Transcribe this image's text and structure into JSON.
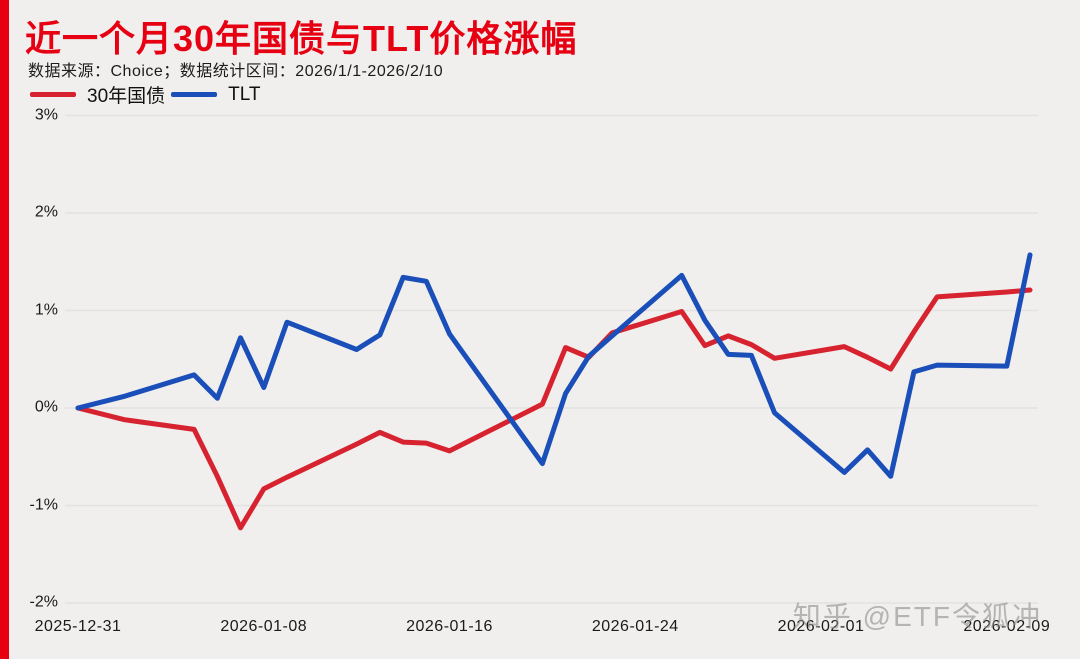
{
  "page": {
    "background_color": "#f0efed",
    "accent_bar_color": "#e60012"
  },
  "header": {
    "title": "近一个月30年国债与TLT价格涨幅",
    "title_color": "#e60012",
    "subtitle": "数据来源：Choice；数据统计区间：2026/1/1-2026/2/10"
  },
  "legend": {
    "items": [
      {
        "label": "30年国债",
        "color": "#d6232f"
      },
      {
        "label": "TLT",
        "color": "#1a4eb8"
      }
    ]
  },
  "watermark": {
    "text": "知乎 @ETF令狐冲"
  },
  "chart_data": {
    "type": "line",
    "title": "近一个月30年国债与TLT价格涨幅",
    "xlabel": "",
    "ylabel": "",
    "ylim": [
      -2,
      3
    ],
    "x_start_date": "2025-12-31",
    "x_end_date": "2026-02-10",
    "grid": true,
    "grid_color": "#e3e2e0",
    "axis_label_color": "#1a1a1a",
    "legend_position": "top-left",
    "yticks": [
      {
        "label": "3%",
        "value": 3
      },
      {
        "label": "2%",
        "value": 2
      },
      {
        "label": "1%",
        "value": 1
      },
      {
        "label": "0%",
        "value": 0
      },
      {
        "label": "-1%",
        "value": -1
      },
      {
        "label": "-2%",
        "value": -2
      }
    ],
    "xticks": [
      {
        "label": "2025-12-31",
        "date": "2025-12-31"
      },
      {
        "label": "2026-01-08",
        "date": "2026-01-08"
      },
      {
        "label": "2026-01-16",
        "date": "2026-01-16"
      },
      {
        "label": "2026-01-24",
        "date": "2026-01-24"
      },
      {
        "label": "2026-02-01",
        "date": "2026-02-01"
      },
      {
        "label": "2026-02-09",
        "date": "2026-02-09"
      }
    ],
    "series": [
      {
        "name": "30年国债",
        "id": "bond30",
        "color": "#d6232f",
        "unit": "%",
        "points": [
          {
            "date": "2025-12-31",
            "value": 0.0
          },
          {
            "date": "2026-01-02",
            "value": -0.12
          },
          {
            "date": "2026-01-05",
            "value": -0.22
          },
          {
            "date": "2026-01-06",
            "value": -0.7
          },
          {
            "date": "2026-01-07",
            "value": -1.23
          },
          {
            "date": "2026-01-08",
            "value": -0.83
          },
          {
            "date": "2026-01-09",
            "value": -0.71
          },
          {
            "date": "2026-01-12",
            "value": -0.37
          },
          {
            "date": "2026-01-13",
            "value": -0.25
          },
          {
            "date": "2026-01-14",
            "value": -0.35
          },
          {
            "date": "2026-01-15",
            "value": -0.36
          },
          {
            "date": "2026-01-16",
            "value": -0.44
          },
          {
            "date": "2026-01-19",
            "value": -0.08
          },
          {
            "date": "2026-01-20",
            "value": 0.04
          },
          {
            "date": "2026-01-21",
            "value": 0.62
          },
          {
            "date": "2026-01-22",
            "value": 0.52
          },
          {
            "date": "2026-01-23",
            "value": 0.77
          },
          {
            "date": "2026-01-26",
            "value": 0.99
          },
          {
            "date": "2026-01-27",
            "value": 0.64
          },
          {
            "date": "2026-01-28",
            "value": 0.74
          },
          {
            "date": "2026-01-29",
            "value": 0.65
          },
          {
            "date": "2026-01-30",
            "value": 0.51
          },
          {
            "date": "2026-02-02",
            "value": 0.63
          },
          {
            "date": "2026-02-03",
            "value": 0.52
          },
          {
            "date": "2026-02-04",
            "value": 0.4
          },
          {
            "date": "2026-02-05",
            "value": 0.78
          },
          {
            "date": "2026-02-06",
            "value": 1.14
          },
          {
            "date": "2026-02-09",
            "value": 1.19
          },
          {
            "date": "2026-02-10",
            "value": 1.21
          }
        ]
      },
      {
        "name": "TLT",
        "id": "tlt",
        "color": "#1a4eb8",
        "unit": "%",
        "points": [
          {
            "date": "2025-12-31",
            "value": 0.0
          },
          {
            "date": "2026-01-02",
            "value": 0.12
          },
          {
            "date": "2026-01-05",
            "value": 0.34
          },
          {
            "date": "2026-01-06",
            "value": 0.1
          },
          {
            "date": "2026-01-07",
            "value": 0.72
          },
          {
            "date": "2026-01-08",
            "value": 0.21
          },
          {
            "date": "2026-01-09",
            "value": 0.88
          },
          {
            "date": "2026-01-12",
            "value": 0.6
          },
          {
            "date": "2026-01-13",
            "value": 0.75
          },
          {
            "date": "2026-01-14",
            "value": 1.34
          },
          {
            "date": "2026-01-15",
            "value": 1.3
          },
          {
            "date": "2026-01-16",
            "value": 0.76
          },
          {
            "date": "2026-01-20",
            "value": -0.57
          },
          {
            "date": "2026-01-21",
            "value": 0.15
          },
          {
            "date": "2026-01-22",
            "value": 0.53
          },
          {
            "date": "2026-01-23",
            "value": 0.74
          },
          {
            "date": "2026-01-26",
            "value": 1.36
          },
          {
            "date": "2026-01-27",
            "value": 0.9
          },
          {
            "date": "2026-01-28",
            "value": 0.55
          },
          {
            "date": "2026-01-29",
            "value": 0.54
          },
          {
            "date": "2026-01-30",
            "value": -0.05
          },
          {
            "date": "2026-02-02",
            "value": -0.66
          },
          {
            "date": "2026-02-03",
            "value": -0.43
          },
          {
            "date": "2026-02-04",
            "value": -0.7
          },
          {
            "date": "2026-02-05",
            "value": 0.37
          },
          {
            "date": "2026-02-06",
            "value": 0.44
          },
          {
            "date": "2026-02-09",
            "value": 0.43
          },
          {
            "date": "2026-02-10",
            "value": 1.57
          }
        ]
      }
    ]
  }
}
